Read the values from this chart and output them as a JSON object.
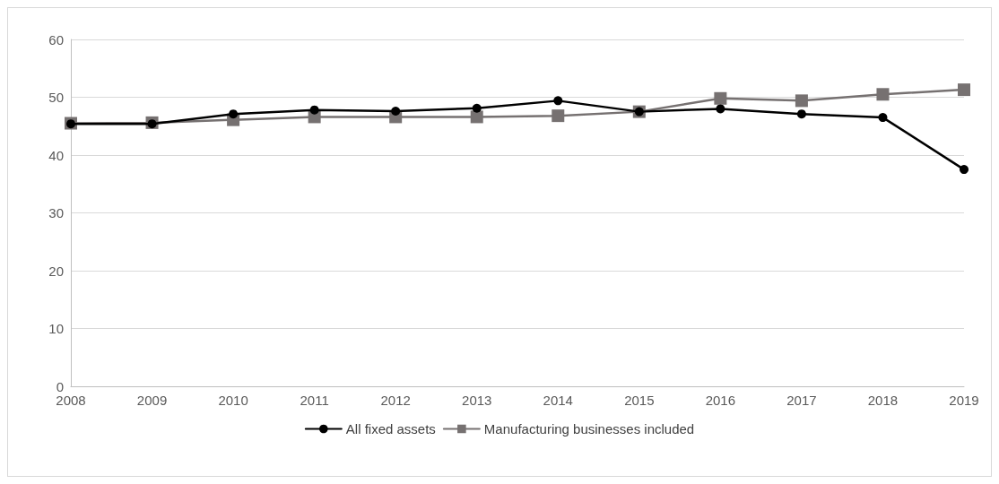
{
  "chart_data": {
    "type": "line",
    "categories": [
      "2008",
      "2009",
      "2010",
      "2011",
      "2012",
      "2013",
      "2014",
      "2015",
      "2016",
      "2017",
      "2018",
      "2019"
    ],
    "series": [
      {
        "name": "All fixed assets",
        "color": "#000000",
        "marker": "circle",
        "values": [
          45.4,
          45.4,
          47.1,
          47.8,
          47.6,
          48.1,
          49.4,
          47.5,
          48.0,
          47.1,
          46.5,
          37.5
        ]
      },
      {
        "name": "Manufacturing businesses included",
        "color": "#767171",
        "marker": "square",
        "values": [
          45.5,
          45.6,
          46.1,
          46.6,
          46.6,
          46.6,
          46.8,
          47.5,
          49.8,
          49.4,
          50.5,
          51.3
        ]
      }
    ],
    "ylim": [
      0,
      60
    ],
    "yticks": [
      0,
      10,
      20,
      30,
      40,
      50,
      60
    ],
    "grid": "y",
    "legend": "bottom",
    "line_style": "solid"
  }
}
